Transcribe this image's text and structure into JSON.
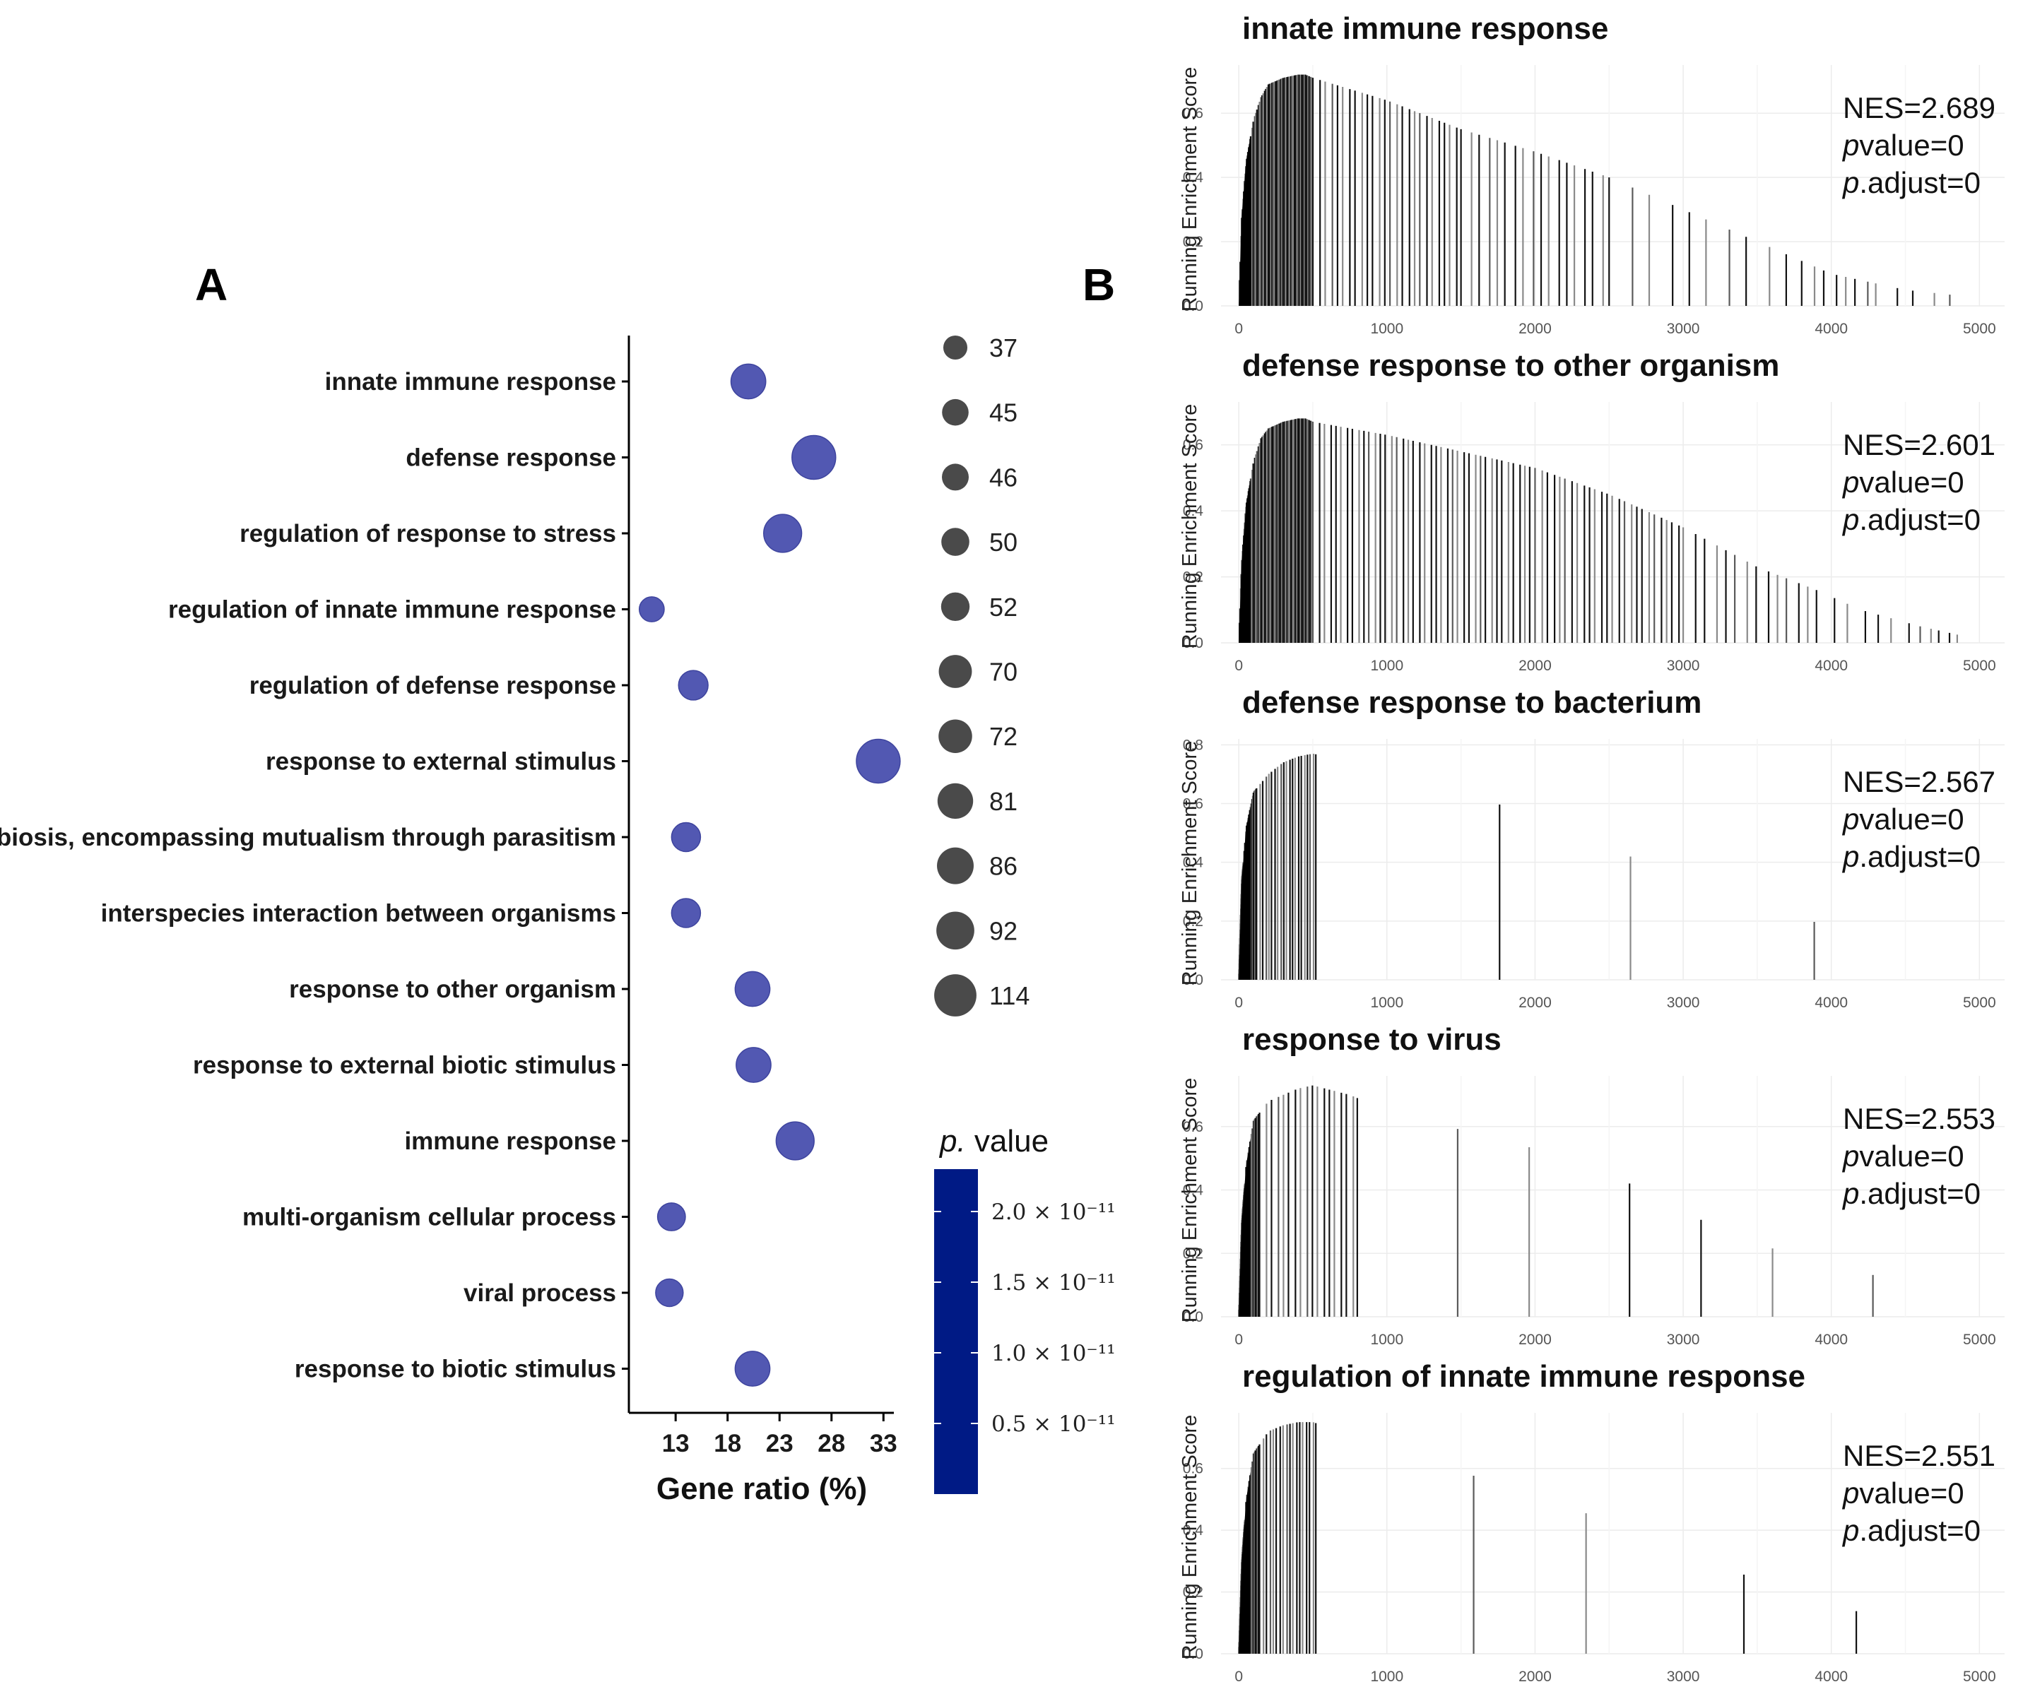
{
  "panel_labels": {
    "a": "A",
    "b": "B"
  },
  "chart_data": [
    {
      "type": "scatter",
      "subtype": "dot-plot",
      "title": "",
      "xlabel": "Gene ratio (%)",
      "ylabel": "",
      "xlim": [
        8.5,
        34
      ],
      "xticks": [
        "13",
        "18",
        "23",
        "28",
        "33"
      ],
      "terms": [
        "innate immune response",
        "defense response",
        "regulation of response to stress",
        "regulation of innate immune response",
        "regulation of defense response",
        "response to external stimulus",
        "symbiosis, encompassing mutualism through parasitism",
        "interspecies interaction between organisms",
        "response to other organism",
        "response to external biotic stimulus",
        "immune response",
        "multi-organism cellular process",
        "viral process",
        "response to biotic stimulus"
      ],
      "gene_ratio": [
        20.0,
        26.3,
        23.3,
        10.7,
        14.7,
        32.5,
        14.0,
        14.0,
        20.4,
        20.5,
        24.5,
        12.6,
        12.4,
        20.4
      ],
      "count": [
        72,
        114,
        86,
        37,
        52,
        114,
        50,
        50,
        72,
        72,
        86,
        46,
        45,
        72
      ],
      "size_legend": {
        "labels": [
          "37",
          "45",
          "46",
          "50",
          "52",
          "70",
          "72",
          "81",
          "86",
          "92",
          "114"
        ],
        "values": [
          37,
          45,
          46,
          50,
          52,
          70,
          72,
          81,
          86,
          92,
          114
        ]
      },
      "color_legend": {
        "title_italic": "p.",
        "title_rest": " value",
        "labels": [
          "2.0 × 10⁻¹¹",
          "1.5 × 10⁻¹¹",
          "1.0 × 10⁻¹¹",
          "0.5 × 10⁻¹¹"
        ],
        "values": [
          2e-11,
          1.5e-11,
          1e-11,
          5e-12
        ],
        "range": [
          0,
          2.3e-11
        ],
        "colors": {
          "high": "#001a85",
          "point": "#5258b2",
          "point_edge": "#3e449e",
          "size_key": "#4a4a4a"
        }
      }
    },
    {
      "type": "line",
      "subtype": "gsea-enrichment",
      "ylabel": "Running Enrichment Score",
      "xlim": [
        -120,
        5170
      ],
      "xticks": [
        "0",
        "1000",
        "2000",
        "3000",
        "4000",
        "5000"
      ],
      "stat_labels": {
        "nes_prefix": "NES=",
        "p_italic": "p",
        "pvalue_rest": "value=",
        "padj_rest": ".adjust="
      },
      "panels": [
        {
          "title": "innate immune response",
          "nes": "2.689",
          "pvalue": "0",
          "padjust": "0",
          "ylim": [
            0,
            0.75
          ],
          "yticks": [
            "0.0",
            "0.2",
            "0.4",
            "0.6"
          ],
          "curve_x": [
            0,
            20,
            50,
            100,
            150,
            200,
            300,
            400,
            450,
            500,
            1000,
            1500,
            2000,
            2500,
            3000,
            3500,
            3800,
            4000,
            4500,
            4900
          ],
          "curve_y": [
            0,
            0.28,
            0.45,
            0.58,
            0.65,
            0.69,
            0.71,
            0.72,
            0.72,
            0.71,
            0.64,
            0.55,
            0.48,
            0.4,
            0.3,
            0.2,
            0.14,
            0.1,
            0.05,
            0.03
          ],
          "hits": [
            [
              0,
              80,
              0.06
            ],
            [
              80,
              500,
              0.02
            ],
            [
              500,
              1500,
              0.04
            ],
            [
              1500,
              2500,
              0.06
            ],
            [
              2500,
              3800,
              0.1
            ],
            [
              3800,
              4300,
              0.15
            ],
            [
              4300,
              4900,
              0.2
            ]
          ]
        },
        {
          "title": "defense response to other organism",
          "nes": "2.601",
          "pvalue": "0",
          "padjust": "0",
          "ylim": [
            0,
            0.73
          ],
          "yticks": [
            "0.0",
            "0.2",
            "0.4",
            "0.6"
          ],
          "curve_x": [
            0,
            20,
            50,
            100,
            150,
            200,
            300,
            400,
            450,
            500,
            1000,
            1500,
            2000,
            2500,
            3000,
            3500,
            3900,
            4200,
            4600,
            4900
          ],
          "curve_y": [
            0,
            0.25,
            0.42,
            0.55,
            0.62,
            0.65,
            0.67,
            0.68,
            0.68,
            0.67,
            0.63,
            0.58,
            0.53,
            0.45,
            0.35,
            0.23,
            0.16,
            0.1,
            0.05,
            0.02
          ],
          "hits": [
            [
              0,
              80,
              0.05
            ],
            [
              80,
              500,
              0.02
            ],
            [
              500,
              2000,
              0.025
            ],
            [
              2000,
              3000,
              0.04
            ],
            [
              3000,
              3900,
              0.08
            ],
            [
              3900,
              4600,
              0.15
            ],
            [
              4600,
              4900,
              0.2
            ]
          ]
        },
        {
          "title": "defense response to bacterium",
          "nes": "2.567",
          "pvalue": "0",
          "padjust": "0",
          "ylim": [
            0,
            0.82
          ],
          "yticks": [
            "0.0",
            "0.2",
            "0.4",
            "0.6",
            "0.8"
          ],
          "curve_x": [
            0,
            20,
            50,
            100,
            200,
            300,
            400,
            500,
            750,
            1000,
            1350,
            1500,
            1800,
            2150,
            2300,
            2700,
            3000,
            3200,
            3500,
            3800,
            4000,
            4500,
            4600
          ],
          "curve_y": [
            0,
            0.34,
            0.52,
            0.64,
            0.7,
            0.74,
            0.76,
            0.77,
            0.74,
            0.72,
            0.66,
            0.64,
            0.59,
            0.51,
            0.48,
            0.41,
            0.35,
            0.31,
            0.26,
            0.21,
            0.18,
            0.1,
            0.09
          ],
          "hits": [
            [
              0,
              30,
              0.025
            ],
            [
              30,
              120,
              0.06
            ],
            [
              120,
              520,
              0.05
            ],
            [
              520,
              4600,
              0.25
            ]
          ]
        },
        {
          "title": "response to virus",
          "nes": "2.553",
          "pvalue": "0",
          "padjust": "0",
          "ylim": [
            0,
            0.76
          ],
          "yticks": [
            "0.0",
            "0.2",
            "0.4",
            "0.6"
          ],
          "curve_x": [
            0,
            20,
            50,
            100,
            200,
            300,
            400,
            500,
            750,
            1000,
            1500,
            2000,
            2300,
            2600,
            3000,
            3500,
            4000,
            4300,
            4700
          ],
          "curve_y": [
            0,
            0.3,
            0.48,
            0.62,
            0.68,
            0.7,
            0.72,
            0.73,
            0.7,
            0.65,
            0.59,
            0.53,
            0.48,
            0.43,
            0.33,
            0.23,
            0.16,
            0.13,
            0.06
          ],
          "hits": [
            [
              0,
              40,
              0.03
            ],
            [
              40,
              140,
              0.07
            ],
            [
              140,
              800,
              0.06
            ],
            [
              800,
              4700,
              0.14
            ]
          ]
        },
        {
          "title": "regulation of innate immune response",
          "nes": "2.551",
          "pvalue": "0",
          "padjust": "0",
          "ylim": [
            0,
            0.78
          ],
          "yticks": [
            "0.0",
            "0.2",
            "0.4",
            "0.6"
          ],
          "curve_x": [
            0,
            20,
            50,
            100,
            200,
            300,
            400,
            500,
            750,
            1000,
            1500,
            2000,
            2500,
            3000,
            3500,
            3800,
            4100,
            4500,
            4900
          ],
          "curve_y": [
            0,
            0.3,
            0.5,
            0.65,
            0.72,
            0.74,
            0.75,
            0.75,
            0.71,
            0.67,
            0.59,
            0.51,
            0.43,
            0.33,
            0.24,
            0.17,
            0.15,
            0.08,
            0.02
          ],
          "hits": [
            [
              0,
              40,
              0.03
            ],
            [
              40,
              140,
              0.07
            ],
            [
              140,
              520,
              0.06
            ],
            [
              520,
              4900,
              0.2
            ]
          ]
        }
      ]
    }
  ]
}
